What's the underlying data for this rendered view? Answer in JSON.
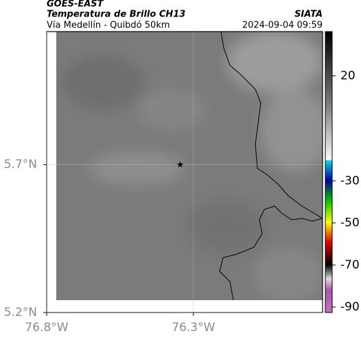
{
  "header": {
    "satellite": "GOES-EAST",
    "product": "Temperatura de Brillo CH13",
    "region": "Vía Medellín - Quibdó 50km",
    "source": "SIATA",
    "datetime": "2024-09-04 09:59"
  },
  "map": {
    "xlim": [
      -76.8,
      -75.86
    ],
    "ylim": [
      5.2,
      6.15
    ],
    "xticks": [
      {
        "value": -76.8,
        "label": "76.8°W"
      },
      {
        "value": -76.3,
        "label": "76.3°W"
      }
    ],
    "yticks": [
      {
        "value": 5.2,
        "label": "5.2°N"
      },
      {
        "value": 5.7,
        "label": "5.7°N"
      }
    ],
    "grid": true,
    "marker": {
      "lon": -76.345,
      "lat": 5.7
    }
  },
  "colorbar": {
    "lim": [
      -92.6,
      41
    ],
    "ticks": [
      20,
      -30,
      -50,
      -70,
      -90
    ]
  }
}
